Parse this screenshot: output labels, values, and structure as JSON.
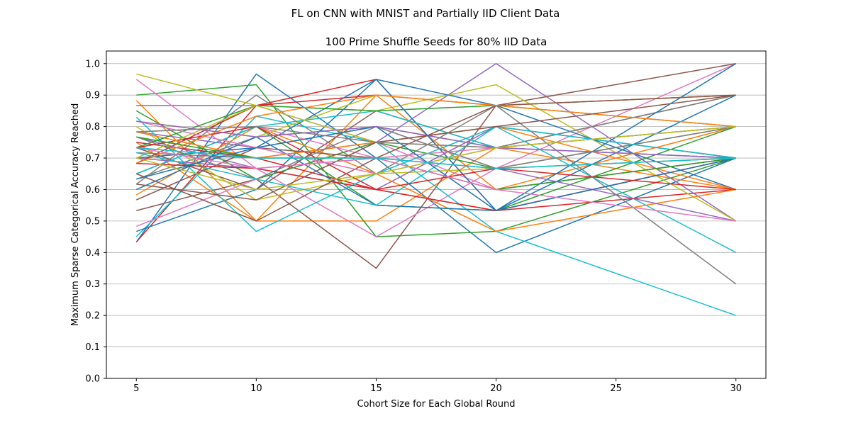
{
  "suptitle": "FL on CNN with MNIST and Partially IID Client Data",
  "chart_data": {
    "type": "line",
    "title": "100 Prime Shuffle Seeds for 80% IID Data",
    "xlabel": "Cohort Size for Each Global Round",
    "ylabel": "Maximum Sparse Categorical Accuracy Reached",
    "x": [
      5,
      10,
      15,
      20,
      30
    ],
    "x_ticks": [
      5,
      10,
      15,
      20,
      25,
      30
    ],
    "y_ticks": [
      0.0,
      0.1,
      0.2,
      0.3,
      0.4,
      0.5,
      0.6,
      0.7,
      0.8,
      0.9,
      1.0
    ],
    "xlim": [
      3.75,
      31.25
    ],
    "ylim": [
      0.0,
      1.04
    ],
    "grid": "y",
    "series": [
      {
        "color": "#1f77b4",
        "values": [
          0.433,
          0.967,
          0.7,
          0.4,
          0.7
        ]
      },
      {
        "color": "#ff7f0e",
        "values": [
          0.883,
          0.5,
          0.5,
          0.733,
          0.6
        ]
      },
      {
        "color": "#2ca02c",
        "values": [
          0.9,
          0.933,
          0.45,
          0.467,
          0.7
        ]
      },
      {
        "color": "#d62728",
        "values": [
          0.433,
          0.867,
          0.95,
          0.533,
          0.6
        ]
      },
      {
        "color": "#9467bd",
        "values": [
          0.867,
          0.867,
          0.75,
          1.0,
          0.5
        ]
      },
      {
        "color": "#8c564b",
        "values": [
          0.533,
          0.633,
          0.35,
          0.867,
          1.0
        ]
      },
      {
        "color": "#e377c2",
        "values": [
          0.95,
          0.667,
          0.45,
          0.667,
          1.0
        ]
      },
      {
        "color": "#7f7f7f",
        "values": [
          0.617,
          0.9,
          0.65,
          0.867,
          0.3
        ]
      },
      {
        "color": "#bcbd22",
        "values": [
          0.967,
          0.867,
          0.85,
          0.933,
          0.5
        ]
      },
      {
        "color": "#17becf",
        "values": [
          0.45,
          0.833,
          0.75,
          0.467,
          0.2
        ]
      },
      {
        "color": "#1f77b4",
        "values": [
          0.467,
          0.6,
          0.95,
          0.867,
          0.6
        ]
      },
      {
        "color": "#ff7f0e",
        "values": [
          0.75,
          0.5,
          0.9,
          0.6,
          0.8
        ]
      },
      {
        "color": "#2ca02c",
        "values": [
          0.65,
          0.8,
          0.55,
          0.533,
          0.8
        ]
      },
      {
        "color": "#d62728",
        "values": [
          0.75,
          0.7,
          0.6,
          0.533,
          0.7
        ]
      },
      {
        "color": "#9467bd",
        "values": [
          0.783,
          0.733,
          0.8,
          0.667,
          0.8
        ]
      },
      {
        "color": "#8c564b",
        "values": [
          0.733,
          0.6,
          0.85,
          0.733,
          0.9
        ]
      },
      {
        "color": "#e377c2",
        "values": [
          0.483,
          0.633,
          0.75,
          0.6,
          0.7
        ]
      },
      {
        "color": "#7f7f7f",
        "values": [
          0.633,
          0.767,
          0.8,
          0.733,
          0.9
        ]
      },
      {
        "color": "#bcbd22",
        "values": [
          0.8,
          0.567,
          0.65,
          0.667,
          0.8
        ]
      },
      {
        "color": "#17becf",
        "values": [
          0.83,
          0.467,
          0.65,
          0.8,
          0.4
        ]
      },
      {
        "color": "#1f77b4",
        "values": [
          0.7,
          0.733,
          0.95,
          0.533,
          1.0
        ]
      },
      {
        "color": "#ff7f0e",
        "values": [
          0.583,
          0.8,
          0.65,
          0.467,
          0.6
        ]
      },
      {
        "color": "#2ca02c",
        "values": [
          0.85,
          0.633,
          0.75,
          0.667,
          0.7
        ]
      },
      {
        "color": "#d62728",
        "values": [
          0.683,
          0.867,
          0.9,
          0.867,
          0.9
        ]
      },
      {
        "color": "#9467bd",
        "values": [
          0.767,
          0.667,
          0.6,
          0.8,
          0.7
        ]
      },
      {
        "color": "#8c564b",
        "values": [
          0.567,
          0.733,
          0.7,
          0.6,
          0.7
        ]
      },
      {
        "color": "#e377c2",
        "values": [
          0.783,
          0.8,
          0.7,
          0.733,
          0.8
        ]
      },
      {
        "color": "#7f7f7f",
        "values": [
          0.717,
          0.7,
          0.75,
          0.8,
          0.7
        ]
      },
      {
        "color": "#bcbd22",
        "values": [
          0.817,
          0.767,
          0.9,
          0.867,
          0.9
        ]
      },
      {
        "color": "#17becf",
        "values": [
          0.65,
          0.8,
          0.85,
          0.733,
          0.7
        ]
      },
      {
        "color": "#1f77b4",
        "values": [
          0.6,
          0.767,
          0.55,
          0.533,
          0.9
        ]
      },
      {
        "color": "#ff7f0e",
        "values": [
          0.783,
          0.7,
          0.75,
          0.8,
          0.6
        ]
      },
      {
        "color": "#2ca02c",
        "values": [
          0.733,
          0.867,
          0.85,
          0.867,
          0.8
        ]
      },
      {
        "color": "#d62728",
        "values": [
          0.733,
          0.8,
          0.6,
          0.533,
          0.7
        ]
      },
      {
        "color": "#9467bd",
        "values": [
          0.7,
          0.667,
          0.7,
          0.667,
          0.5
        ]
      },
      {
        "color": "#8c564b",
        "values": [
          0.65,
          0.5,
          0.7,
          0.867,
          0.9
        ]
      },
      {
        "color": "#e377c2",
        "values": [
          0.817,
          0.733,
          0.65,
          0.733,
          0.7
        ]
      },
      {
        "color": "#7f7f7f",
        "values": [
          0.767,
          0.633,
          0.8,
          0.667,
          0.8
        ]
      },
      {
        "color": "#bcbd22",
        "values": [
          0.7,
          0.867,
          0.75,
          0.733,
          0.8
        ]
      },
      {
        "color": "#17becf",
        "values": [
          0.717,
          0.633,
          0.55,
          0.8,
          0.7
        ]
      },
      {
        "color": "#1f77b4",
        "values": [
          0.633,
          0.733,
          0.8,
          0.533,
          0.7
        ]
      },
      {
        "color": "#ff7f0e",
        "values": [
          0.683,
          0.833,
          0.9,
          0.867,
          0.8
        ]
      },
      {
        "color": "#2ca02c",
        "values": [
          0.767,
          0.7,
          0.7,
          0.6,
          0.7
        ]
      },
      {
        "color": "#d62728",
        "values": [
          0.683,
          0.667,
          0.6,
          0.667,
          0.6
        ]
      },
      {
        "color": "#9467bd",
        "values": [
          0.817,
          0.767,
          0.8,
          0.733,
          0.7
        ]
      },
      {
        "color": "#8c564b",
        "values": [
          0.617,
          0.567,
          0.75,
          0.8,
          0.9
        ]
      },
      {
        "color": "#e377c2",
        "values": [
          0.733,
          0.667,
          0.7,
          0.6,
          0.5
        ]
      },
      {
        "color": "#7f7f7f",
        "values": [
          0.783,
          0.8,
          0.75,
          0.733,
          0.8
        ]
      },
      {
        "color": "#bcbd22",
        "values": [
          0.7,
          0.6,
          0.65,
          0.733,
          0.8
        ]
      },
      {
        "color": "#17becf",
        "values": [
          0.733,
          0.7,
          0.7,
          0.667,
          0.7
        ]
      }
    ]
  }
}
